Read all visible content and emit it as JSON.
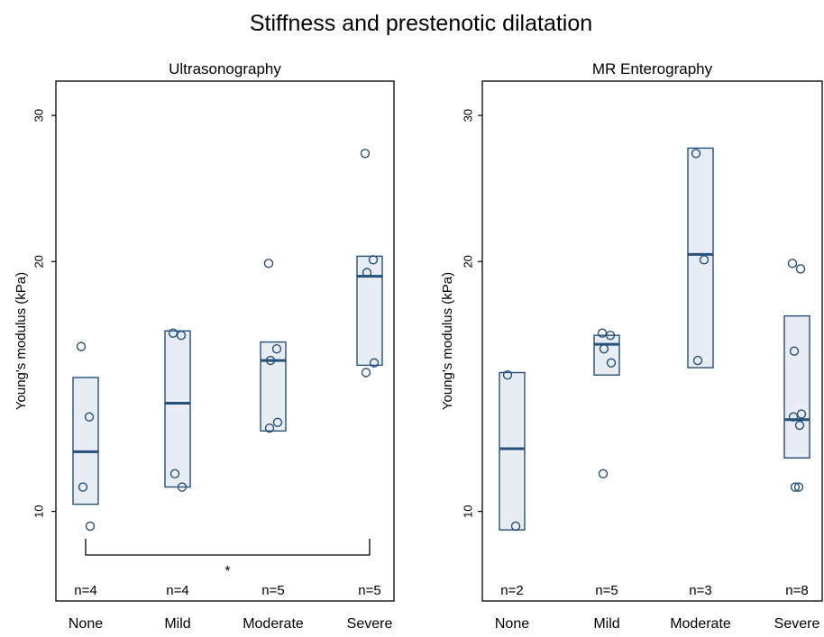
{
  "figure": {
    "title": "Stiffness and prestenotic dilatation"
  },
  "colors": {
    "stroke": "#24507a",
    "box_fill": "#e8edf3",
    "axis": "#000000"
  },
  "chart_data": [
    {
      "type": "box",
      "title": "Ultrasonography",
      "ylabel": "Young's modulus (kPa)",
      "yscale": "log",
      "yticks": [
        10,
        20,
        30
      ],
      "ylim": [
        7.8,
        33
      ],
      "categories": [
        "None",
        "Mild",
        "Moderate",
        "Severe"
      ],
      "counts": [
        "n=4",
        "n=4",
        "n=5",
        "n=5"
      ],
      "boxes": [
        {
          "q1": 10.2,
          "median": 11.8,
          "q3": 14.5
        },
        {
          "q1": 10.7,
          "median": 13.5,
          "q3": 16.5
        },
        {
          "q1": 12.5,
          "median": 15.2,
          "q3": 16.0
        },
        {
          "q1": 15.0,
          "median": 19.2,
          "q3": 20.3
        }
      ],
      "points": [
        [
          15.8,
          13.0,
          10.7,
          9.6
        ],
        [
          16.4,
          16.3,
          11.1,
          10.7
        ],
        [
          19.9,
          15.7,
          15.2,
          12.8,
          12.6
        ],
        [
          27.0,
          20.1,
          19.4,
          15.1,
          14.7
        ]
      ],
      "significance": {
        "from": "None",
        "to": "Severe",
        "label": "*"
      }
    },
    {
      "type": "box",
      "title": "MR Enterography",
      "ylabel": "Young's modulus (kPa)",
      "yscale": "log",
      "yticks": [
        10,
        20,
        30
      ],
      "ylim": [
        7.8,
        33
      ],
      "categories": [
        "None",
        "Mild",
        "Moderate",
        "Severe"
      ],
      "counts": [
        "n=2",
        "n=5",
        "n=3",
        "n=8"
      ],
      "boxes": [
        {
          "q1": 9.5,
          "median": 11.9,
          "q3": 14.7
        },
        {
          "q1": 14.6,
          "median": 15.9,
          "q3": 16.3
        },
        {
          "q1": 14.9,
          "median": 20.4,
          "q3": 27.4
        },
        {
          "q1": 11.6,
          "median": 12.9,
          "q3": 17.2
        }
      ],
      "points": [
        [
          14.6,
          9.6
        ],
        [
          16.4,
          16.3,
          15.7,
          15.1,
          11.1
        ],
        [
          27.0,
          20.1,
          15.2
        ],
        [
          19.9,
          19.6,
          15.6,
          13.1,
          13.0,
          12.7,
          10.7,
          10.7
        ]
      ]
    }
  ]
}
